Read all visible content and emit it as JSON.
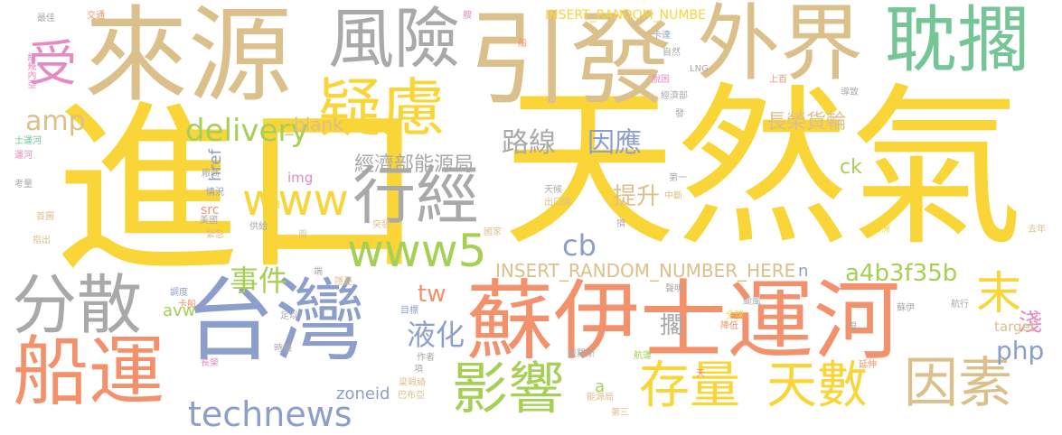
{
  "palette": {
    "yellow": "#f9d537",
    "tan": "#dcc08c",
    "orange": "#f2916b",
    "green": "#75c597",
    "blue": "#8c9fca",
    "gray": "#a9a9a9",
    "pink": "#e78ac3",
    "lime": "#a6d055"
  },
  "words": [
    {
      "text": "進口",
      "color": "yellow",
      "vertical": false
    },
    {
      "text": "天然氣",
      "color": "yellow",
      "vertical": false
    },
    {
      "text": "來源",
      "color": "tan",
      "vertical": false
    },
    {
      "text": "引發",
      "color": "tan",
      "vertical": false
    },
    {
      "text": "外界",
      "color": "tan",
      "vertical": false
    },
    {
      "text": "耽擱",
      "color": "green",
      "vertical": false
    },
    {
      "text": "風險",
      "color": "gray",
      "vertical": false
    },
    {
      "text": "疑慮",
      "color": "yellow",
      "vertical": false
    },
    {
      "text": "受",
      "color": "pink",
      "vertical": false
    },
    {
      "text": "蘇伊士運河",
      "color": "orange",
      "vertical": false
    },
    {
      "text": "台灣",
      "color": "blue",
      "vertical": false
    },
    {
      "text": "船運",
      "color": "orange",
      "vertical": false
    },
    {
      "text": "分散",
      "color": "gray",
      "vertical": false
    },
    {
      "text": "行經",
      "color": "gray",
      "vertical": false
    },
    {
      "text": "www5",
      "color": "lime",
      "vertical": false
    },
    {
      "text": "www",
      "color": "yellow",
      "vertical": false
    },
    {
      "text": "影響",
      "color": "lime",
      "vertical": false
    },
    {
      "text": "存量",
      "color": "yellow",
      "vertical": false
    },
    {
      "text": "天數",
      "color": "yellow",
      "vertical": false
    },
    {
      "text": "因素",
      "color": "tan",
      "vertical": false
    },
    {
      "text": "末",
      "color": "yellow",
      "vertical": false
    },
    {
      "text": "technews",
      "color": "blue",
      "vertical": false
    },
    {
      "text": "delivery",
      "color": "lime",
      "vertical": false
    },
    {
      "text": "amp",
      "color": "tan",
      "vertical": false
    },
    {
      "text": "長榮貨輪",
      "color": "tan",
      "vertical": false
    },
    {
      "text": "路線",
      "color": "gray",
      "vertical": false
    },
    {
      "text": "因應",
      "color": "blue",
      "vertical": false
    },
    {
      "text": "經濟部能源局",
      "color": "gray",
      "vertical": false
    },
    {
      "text": "事件",
      "color": "lime",
      "vertical": false
    },
    {
      "text": "提升",
      "color": "tan",
      "vertical": false
    },
    {
      "text": "液化",
      "color": "blue",
      "vertical": false
    },
    {
      "text": "cb",
      "color": "blue",
      "vertical": false
    },
    {
      "text": "php",
      "color": "blue",
      "vertical": false
    },
    {
      "text": "a4b3f35b",
      "color": "lime",
      "vertical": false
    },
    {
      "text": "tw",
      "color": "orange",
      "vertical": false
    },
    {
      "text": "擱",
      "color": "gray",
      "vertical": false
    },
    {
      "text": "淺",
      "color": "pink",
      "vertical": false
    },
    {
      "text": "ck",
      "color": "lime",
      "vertical": false
    },
    {
      "text": "INSERT_RANDOM_NUMBER_HERE",
      "color": "tan",
      "vertical": false
    },
    {
      "text": "INSERT_RANDOM_NUMBE",
      "color": "yellow",
      "vertical": false
    },
    {
      "text": "_blank",
      "color": "tan",
      "vertical": false
    },
    {
      "text": "href",
      "color": "blue",
      "vertical": false
    },
    {
      "text": "img",
      "color": "pink",
      "vertical": false
    },
    {
      "text": "src",
      "color": "orange",
      "vertical": false
    },
    {
      "text": "avw",
      "color": "lime",
      "vertical": false
    },
    {
      "text": "zoneid",
      "color": "blue",
      "vertical": false
    },
    {
      "text": "n",
      "color": "blue",
      "vertical": false
    },
    {
      "text": "a",
      "color": "lime",
      "vertical": false
    },
    {
      "text": "target",
      "color": "tan",
      "vertical": false
    },
    {
      "text": "最佳",
      "color": "gray",
      "vertical": false
    },
    {
      "text": "交通",
      "color": "orange",
      "vertical": false
    },
    {
      "text": "艘",
      "color": "pink",
      "vertical": false
    },
    {
      "text": "卡達",
      "color": "blue",
      "vertical": false
    },
    {
      "text": "自然",
      "color": "gray",
      "vertical": false
    },
    {
      "text": "LNG",
      "color": "gray",
      "vertical": false
    },
    {
      "text": "脫困",
      "color": "pink",
      "vertical": false
    },
    {
      "text": "經濟部",
      "color": "gray",
      "vertical": false
    },
    {
      "text": "發",
      "color": "gray",
      "vertical": false
    },
    {
      "text": "上百",
      "color": "orange",
      "vertical": false
    },
    {
      "text": "導致",
      "color": "gray",
      "vertical": false
    },
    {
      "text": "紐幾內亞",
      "color": "pink",
      "vertical": true
    },
    {
      "text": "士運河",
      "color": "green",
      "vertical": false
    },
    {
      "text": "運河",
      "color": "pink",
      "vertical": false
    },
    {
      "text": "考量",
      "color": "gray",
      "vertical": false
    },
    {
      "text": "首圖",
      "color": "tan",
      "vertical": false
    },
    {
      "text": "指出",
      "color": "tan",
      "vertical": false
    },
    {
      "text": "廠商",
      "color": "gray",
      "vertical": false
    },
    {
      "text": "情況",
      "color": "blue",
      "vertical": false
    },
    {
      "text": "美國",
      "color": "gray",
      "vertical": false
    },
    {
      "text": "緊急",
      "color": "tan",
      "vertical": false
    },
    {
      "text": "閱讀",
      "color": "yellow",
      "vertical": false
    },
    {
      "text": "供給",
      "color": "gray",
      "vertical": false
    },
    {
      "text": "兩",
      "color": "tan",
      "vertical": false
    },
    {
      "text": "突發",
      "color": "tan",
      "vertical": false
    },
    {
      "text": "國家",
      "color": "tan",
      "vertical": false
    },
    {
      "text": "擠",
      "color": "gray",
      "vertical": false
    },
    {
      "text": "第一",
      "color": "gray",
      "vertical": false
    },
    {
      "text": "天候",
      "color": "gray",
      "vertical": false
    },
    {
      "text": "中斷",
      "color": "tan",
      "vertical": false
    },
    {
      "text": "出口國",
      "color": "tan",
      "vertical": false
    },
    {
      "text": "澳洲",
      "color": "yellow",
      "vertical": false
    },
    {
      "text": "去年",
      "color": "tan",
      "vertical": false
    },
    {
      "text": "蘇伊",
      "color": "gray",
      "vertical": false
    },
    {
      "text": "颱風",
      "color": "gray",
      "vertical": false
    },
    {
      "text": "航行",
      "color": "gray",
      "vertical": false
    },
    {
      "text": "聲明",
      "color": "gray",
      "vertical": false
    },
    {
      "text": "全球",
      "color": "yellow",
      "vertical": false
    },
    {
      "text": "降低",
      "color": "orange",
      "vertical": false
    },
    {
      "text": "現",
      "color": "gray",
      "vertical": false
    },
    {
      "text": "航運",
      "color": "lime",
      "vertical": false
    },
    {
      "text": "延伸",
      "color": "orange",
      "vertical": false
    },
    {
      "text": "天",
      "color": "orange",
      "vertical": false
    },
    {
      "text": "俄羅斯",
      "color": "gray",
      "vertical": false
    },
    {
      "text": "能源局",
      "color": "tan",
      "vertical": false
    },
    {
      "text": "巴布亞",
      "color": "tan",
      "vertical": false
    },
    {
      "text": "第三",
      "color": "tan",
      "vertical": false
    },
    {
      "text": "梁珮綺",
      "color": "tan",
      "vertical": false
    },
    {
      "text": "作者",
      "color": "gray",
      "vertical": false
    },
    {
      "text": "項",
      "color": "gray",
      "vertical": false
    },
    {
      "text": "目標",
      "color": "blue",
      "vertical": false
    },
    {
      "text": "時機",
      "color": "gray",
      "vertical": false
    },
    {
      "text": "長榮",
      "color": "pink",
      "vertical": false
    },
    {
      "text": "卡船",
      "color": "orange",
      "vertical": false
    },
    {
      "text": "足以",
      "color": "gray",
      "vertical": false
    },
    {
      "text": "調度",
      "color": "blue",
      "vertical": false
    },
    {
      "text": "隱憂",
      "color": "tan",
      "vertical": false
    },
    {
      "text": "端",
      "color": "gray",
      "vertical": false
    },
    {
      "text": "船",
      "color": "orange",
      "vertical": false
    }
  ]
}
